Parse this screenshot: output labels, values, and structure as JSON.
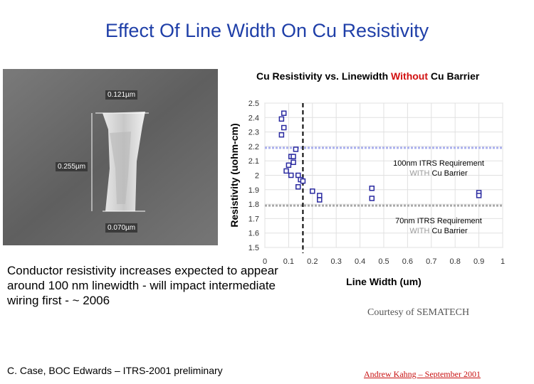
{
  "slide": {
    "title": "Effect Of Line Width On Cu Resistivity",
    "body": "Conductor resistivity increases expected to appear around 100 nm linewidth - will impact intermediate wiring first - ~ 2006",
    "courtesy": "Courtesy of SEMATECH",
    "footer_left": "C. Case, BOC Edwards – ITRS-2001 preliminary",
    "footer_right": "Andrew Kahng – September 2001"
  },
  "micrograph": {
    "label_top": "0.121µm",
    "label_left": "0.255µm",
    "label_bottom": "0.070µm"
  },
  "chart_data": {
    "type": "scatter",
    "title_part1": "Cu Resistivity vs. Linewidth ",
    "title_highlight": "Without",
    "title_part2": " Cu Barrier",
    "xlabel": "Line Width (um)",
    "ylabel": "Resistivity (uohm-cm)",
    "xlim": [
      0,
      1
    ],
    "ylim": [
      1.5,
      2.5
    ],
    "x_ticks": [
      "0",
      "0.1",
      "0.2",
      "0.3",
      "0.4",
      "0.5",
      "0.6",
      "0.7",
      "0.8",
      "0.9",
      "1"
    ],
    "y_ticks": [
      "1.5",
      "1.6",
      "1.7",
      "1.8",
      "1.9",
      "2",
      "2.1",
      "2.2",
      "2.3",
      "2.4",
      "2.5"
    ],
    "grid": true,
    "marker_color": "#2a2aa0",
    "points": [
      [
        0.08,
        2.43
      ],
      [
        0.07,
        2.39
      ],
      [
        0.08,
        2.33
      ],
      [
        0.07,
        2.28
      ],
      [
        0.13,
        2.18
      ],
      [
        0.11,
        2.13
      ],
      [
        0.12,
        2.13
      ],
      [
        0.12,
        2.09
      ],
      [
        0.1,
        2.07
      ],
      [
        0.09,
        2.03
      ],
      [
        0.11,
        2.0
      ],
      [
        0.14,
        2.0
      ],
      [
        0.15,
        1.97
      ],
      [
        0.16,
        1.96
      ],
      [
        0.14,
        1.92
      ],
      [
        0.2,
        1.89
      ],
      [
        0.23,
        1.86
      ],
      [
        0.23,
        1.83
      ],
      [
        0.45,
        1.91
      ],
      [
        0.45,
        1.84
      ],
      [
        0.9,
        1.88
      ],
      [
        0.9,
        1.86
      ]
    ],
    "reference_lines": [
      {
        "y": 2.19,
        "label_line1": "100nm ITRS Requirement",
        "label_prefix": "WITH",
        "label_suffix": " Cu Barrier",
        "color": "#aab0ee"
      },
      {
        "y": 1.79,
        "label_line1": "70nm ITRS Requirement",
        "label_prefix": "WITH",
        "label_suffix": " Cu Barrier",
        "color": "#aaaaaa"
      }
    ],
    "vertical_line": {
      "x": 0.16
    }
  }
}
